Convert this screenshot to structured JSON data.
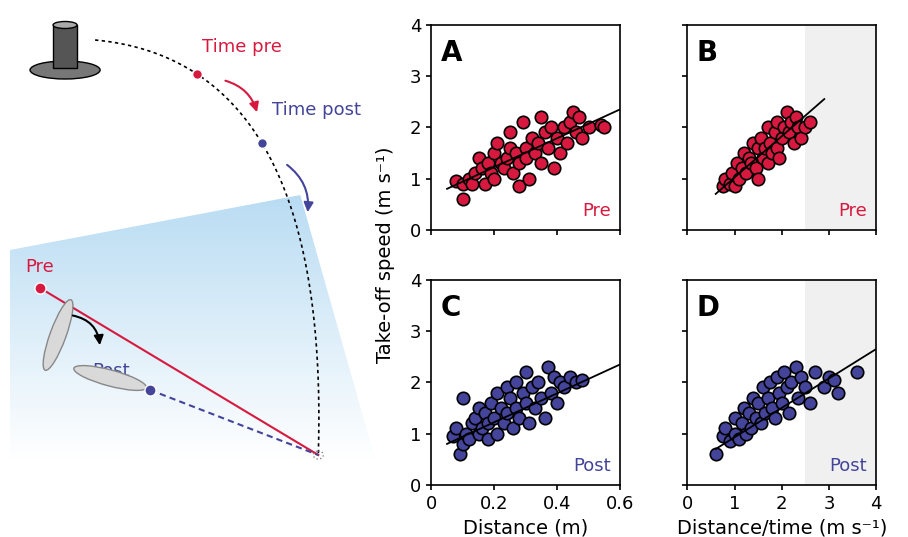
{
  "diagram": {
    "time_pre": "Time pre",
    "time_post": "Time post",
    "pre": "Pre",
    "post": "Post",
    "pre_color": "#d7193f",
    "post_color": "#43449a"
  },
  "ylabel": "Take-off speed (m s⁻¹)",
  "chart_data": [
    {
      "type": "scatter",
      "label": "A",
      "annotation": "Pre",
      "annotation_color": "#d7193f",
      "xlim": [
        0,
        0.6
      ],
      "xticks": [
        0,
        0.2,
        0.4,
        0.6
      ],
      "ylim": [
        0,
        4
      ],
      "yticks": [
        0,
        1,
        2,
        3,
        4
      ],
      "tick_labels": "y",
      "series": [
        {
          "type": "scatter",
          "color": "#d7193f",
          "marker": "o",
          "x": [
            0.08,
            0.1,
            0.1,
            0.12,
            0.13,
            0.14,
            0.15,
            0.16,
            0.17,
            0.18,
            0.19,
            0.2,
            0.2,
            0.21,
            0.22,
            0.23,
            0.24,
            0.25,
            0.25,
            0.26,
            0.27,
            0.28,
            0.28,
            0.29,
            0.3,
            0.3,
            0.31,
            0.32,
            0.33,
            0.34,
            0.35,
            0.35,
            0.36,
            0.37,
            0.38,
            0.39,
            0.4,
            0.41,
            0.42,
            0.43,
            0.44,
            0.45,
            0.46,
            0.47,
            0.48,
            0.5,
            0.54,
            0.55
          ],
          "values": [
            0.95,
            0.6,
            0.9,
            1.0,
            0.9,
            1.1,
            1.4,
            1.2,
            0.9,
            1.3,
            1.1,
            1.5,
            1.0,
            1.7,
            1.3,
            1.2,
            1.4,
            1.6,
            1.9,
            1.1,
            1.5,
            0.85,
            1.3,
            2.1,
            1.6,
            1.4,
            1.0,
            1.8,
            1.5,
            1.7,
            1.3,
            2.2,
            1.9,
            1.6,
            2.0,
            1.2,
            1.8,
            1.5,
            2.0,
            1.7,
            2.1,
            2.3,
            1.9,
            2.2,
            1.8,
            2.0,
            2.05,
            2.0
          ]
        },
        {
          "type": "line",
          "color": "#000000",
          "line_style": "solid",
          "x": [
            0.05,
            0.6
          ],
          "values": [
            0.8,
            2.35
          ]
        }
      ]
    },
    {
      "type": "scatter",
      "label": "B",
      "annotation": "Pre",
      "annotation_color": "#d7193f",
      "xlim": [
        0,
        4
      ],
      "xticks": [
        0,
        1,
        2,
        3,
        4
      ],
      "ylim": [
        0,
        4
      ],
      "yticks": [
        0,
        1,
        2,
        3,
        4
      ],
      "tick_labels": false,
      "shaded_x": [
        2.5,
        4
      ],
      "series": [
        {
          "type": "scatter",
          "color": "#d7193f",
          "marker": "o",
          "x": [
            0.75,
            0.8,
            0.9,
            0.95,
            1.0,
            1.05,
            1.1,
            1.15,
            1.2,
            1.25,
            1.3,
            1.35,
            1.4,
            1.45,
            1.5,
            1.5,
            1.55,
            1.6,
            1.65,
            1.7,
            1.7,
            1.75,
            1.8,
            1.85,
            1.9,
            1.9,
            1.95,
            2.0,
            2.05,
            2.1,
            2.15,
            2.2,
            2.25,
            2.3,
            2.35,
            2.4,
            2.5,
            2.6
          ],
          "values": [
            0.85,
            1.0,
            0.9,
            1.1,
            0.85,
            1.3,
            1.0,
            1.2,
            1.5,
            1.1,
            1.4,
            1.3,
            1.7,
            1.2,
            1.6,
            1.0,
            1.8,
            1.4,
            1.6,
            2.0,
            1.3,
            1.7,
            1.5,
            1.9,
            2.1,
            1.6,
            1.4,
            1.8,
            2.0,
            2.3,
            1.9,
            2.1,
            1.7,
            2.2,
            2.0,
            1.8,
            2.0,
            2.1
          ]
        },
        {
          "type": "line",
          "color": "#000000",
          "line_style": "solid",
          "x": [
            0.6,
            2.9
          ],
          "values": [
            0.7,
            2.55
          ]
        }
      ]
    },
    {
      "type": "scatter",
      "label": "C",
      "annotation": "Post",
      "annotation_color": "#43449a",
      "xlabel": "Distance (m)",
      "xlim": [
        0,
        0.6
      ],
      "xticks": [
        0,
        0.2,
        0.4,
        0.6
      ],
      "ylim": [
        0,
        4
      ],
      "yticks": [
        0,
        1,
        2,
        3,
        4
      ],
      "tick_labels": true,
      "series": [
        {
          "type": "scatter",
          "color": "#43449a",
          "marker": "o",
          "x": [
            0.07,
            0.08,
            0.09,
            0.1,
            0.1,
            0.11,
            0.12,
            0.13,
            0.14,
            0.15,
            0.15,
            0.16,
            0.17,
            0.18,
            0.18,
            0.19,
            0.2,
            0.21,
            0.21,
            0.22,
            0.23,
            0.24,
            0.24,
            0.25,
            0.26,
            0.27,
            0.27,
            0.28,
            0.29,
            0.3,
            0.3,
            0.31,
            0.32,
            0.33,
            0.34,
            0.35,
            0.36,
            0.37,
            0.38,
            0.39,
            0.4,
            0.41,
            0.42,
            0.44,
            0.46,
            0.48
          ],
          "values": [
            0.95,
            1.1,
            0.6,
            0.8,
            1.7,
            1.0,
            0.9,
            1.2,
            1.3,
            1.0,
            1.5,
            1.1,
            1.4,
            0.9,
            1.2,
            1.6,
            1.3,
            1.8,
            1.0,
            1.5,
            1.2,
            1.9,
            1.4,
            1.7,
            1.1,
            2.0,
            1.5,
            1.3,
            1.8,
            2.2,
            1.6,
            1.2,
            1.9,
            1.5,
            2.0,
            1.7,
            1.3,
            2.3,
            1.8,
            2.1,
            1.6,
            2.0,
            1.9,
            2.1,
            2.0,
            2.05
          ]
        },
        {
          "type": "line",
          "color": "#000000",
          "line_style": "solid",
          "x": [
            0.05,
            0.6
          ],
          "values": [
            0.8,
            2.35
          ]
        }
      ]
    },
    {
      "type": "scatter",
      "label": "D",
      "annotation": "Post",
      "annotation_color": "#43449a",
      "xlabel": "Distance/time (m s⁻¹)",
      "xlim": [
        0,
        4
      ],
      "xticks": [
        0,
        1,
        2,
        3,
        4
      ],
      "ylim": [
        0,
        4
      ],
      "yticks": [
        0,
        1,
        2,
        3,
        4
      ],
      "tick_labels": "x",
      "shaded_x": [
        2.5,
        4
      ],
      "series": [
        {
          "type": "scatter",
          "color": "#43449a",
          "marker": "o",
          "x": [
            0.6,
            0.75,
            0.8,
            0.9,
            1.0,
            1.0,
            1.1,
            1.15,
            1.2,
            1.25,
            1.3,
            1.35,
            1.4,
            1.45,
            1.5,
            1.55,
            1.6,
            1.65,
            1.7,
            1.75,
            1.8,
            1.85,
            1.9,
            1.95,
            2.0,
            2.05,
            2.1,
            2.15,
            2.2,
            2.3,
            2.35,
            2.4,
            2.5,
            2.6,
            2.7,
            2.9,
            3.0,
            3.1,
            3.2,
            3.6
          ],
          "values": [
            0.6,
            0.95,
            1.1,
            0.85,
            1.0,
            1.3,
            0.9,
            1.2,
            1.5,
            1.0,
            1.4,
            1.1,
            1.7,
            1.3,
            1.6,
            1.2,
            1.9,
            1.4,
            1.7,
            2.0,
            1.5,
            1.3,
            2.1,
            1.8,
            1.6,
            2.2,
            1.9,
            1.4,
            2.0,
            2.3,
            1.7,
            2.1,
            1.9,
            1.6,
            2.2,
            1.9,
            2.1,
            2.05,
            1.8,
            2.2
          ]
        },
        {
          "type": "line",
          "color": "#000000",
          "line_style": "solid",
          "x": [
            0.6,
            4
          ],
          "values": [
            0.7,
            2.65
          ]
        }
      ]
    }
  ]
}
